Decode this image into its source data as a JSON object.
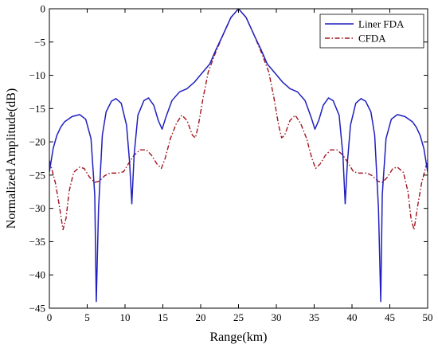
{
  "chart_data": {
    "type": "line",
    "xlabel": "Range(km)",
    "ylabel": "Normalized Amplitude(dB)",
    "xlim": [
      0,
      50
    ],
    "ylim": [
      -45,
      0
    ],
    "xticks": [
      0,
      5,
      10,
      15,
      20,
      25,
      30,
      35,
      40,
      45,
      50
    ],
    "yticks": [
      0,
      -5,
      -10,
      -15,
      -20,
      -25,
      -30,
      -35,
      -40,
      -45
    ],
    "grid": false,
    "legend_position": "top-right",
    "series": [
      {
        "name": "Liner FDA",
        "color": "#1f1fbf",
        "line_style": "solid",
        "points": [
          [
            0,
            -24.5
          ],
          [
            0.5,
            -21
          ],
          [
            1,
            -19
          ],
          [
            1.5,
            -17.8
          ],
          [
            2,
            -17
          ],
          [
            3,
            -16.2
          ],
          [
            4,
            -15.9
          ],
          [
            4.8,
            -16.6
          ],
          [
            5.5,
            -19.5
          ],
          [
            6,
            -28
          ],
          [
            6.2,
            -44
          ],
          [
            6.5,
            -30
          ],
          [
            7,
            -19
          ],
          [
            7.5,
            -15.5
          ],
          [
            8.2,
            -13.9
          ],
          [
            8.8,
            -13.5
          ],
          [
            9.5,
            -14.2
          ],
          [
            10.2,
            -17.5
          ],
          [
            10.6,
            -23
          ],
          [
            10.9,
            -29.3
          ],
          [
            11.2,
            -22
          ],
          [
            11.7,
            -16
          ],
          [
            12.5,
            -13.8
          ],
          [
            13.1,
            -13.4
          ],
          [
            13.8,
            -14.5
          ],
          [
            14.4,
            -16.8
          ],
          [
            14.9,
            -18.1
          ],
          [
            15.4,
            -16.3
          ],
          [
            16.2,
            -13.8
          ],
          [
            17.2,
            -12.5
          ],
          [
            18.2,
            -12
          ],
          [
            19.2,
            -11
          ],
          [
            20.3,
            -9.5
          ],
          [
            21.2,
            -8.3
          ],
          [
            22,
            -6.2
          ],
          [
            23,
            -3.8
          ],
          [
            24,
            -1.3
          ],
          [
            25,
            0
          ],
          [
            26,
            -1.3
          ],
          [
            27,
            -3.8
          ],
          [
            28,
            -6.2
          ],
          [
            28.8,
            -8.3
          ],
          [
            29.7,
            -9.5
          ],
          [
            30.8,
            -11
          ],
          [
            31.8,
            -12
          ],
          [
            32.8,
            -12.5
          ],
          [
            33.8,
            -13.8
          ],
          [
            34.6,
            -16.3
          ],
          [
            35.1,
            -18.1
          ],
          [
            35.6,
            -16.8
          ],
          [
            36.2,
            -14.5
          ],
          [
            36.9,
            -13.4
          ],
          [
            37.5,
            -13.8
          ],
          [
            38.3,
            -16
          ],
          [
            38.8,
            -22
          ],
          [
            39.1,
            -29.3
          ],
          [
            39.4,
            -23
          ],
          [
            39.8,
            -17.5
          ],
          [
            40.5,
            -14.2
          ],
          [
            41.2,
            -13.5
          ],
          [
            41.8,
            -13.9
          ],
          [
            42.5,
            -15.5
          ],
          [
            43,
            -19
          ],
          [
            43.5,
            -30
          ],
          [
            43.8,
            -44
          ],
          [
            44,
            -28
          ],
          [
            44.5,
            -19.5
          ],
          [
            45.2,
            -16.6
          ],
          [
            46,
            -15.9
          ],
          [
            47,
            -16.2
          ],
          [
            48,
            -17
          ],
          [
            48.5,
            -17.8
          ],
          [
            49,
            -19
          ],
          [
            49.5,
            -21
          ],
          [
            50,
            -24.5
          ]
        ]
      },
      {
        "name": "CFDA",
        "color": "#a0141e",
        "line_style": "dash-dot",
        "points": [
          [
            0,
            -22.8
          ],
          [
            0.3,
            -24
          ],
          [
            0.8,
            -26.2
          ],
          [
            1.3,
            -29.5
          ],
          [
            1.8,
            -33.2
          ],
          [
            2.2,
            -31.5
          ],
          [
            2.6,
            -27.5
          ],
          [
            3.2,
            -24.6
          ],
          [
            4,
            -23.8
          ],
          [
            4.6,
            -24
          ],
          [
            5.3,
            -25.3
          ],
          [
            6,
            -26.1
          ],
          [
            6.6,
            -25.9
          ],
          [
            7.3,
            -25.1
          ],
          [
            8,
            -24.7
          ],
          [
            9,
            -24.7
          ],
          [
            9.8,
            -24.5
          ],
          [
            10.5,
            -23.2
          ],
          [
            11.2,
            -22
          ],
          [
            12,
            -21.2
          ],
          [
            12.8,
            -21.2
          ],
          [
            13.5,
            -22
          ],
          [
            14.2,
            -23.3
          ],
          [
            14.8,
            -24
          ],
          [
            15.3,
            -22.5
          ],
          [
            16,
            -19.5
          ],
          [
            16.8,
            -17.2
          ],
          [
            17.5,
            -16
          ],
          [
            18.2,
            -16.8
          ],
          [
            18.9,
            -19
          ],
          [
            19.3,
            -19.4
          ],
          [
            19.7,
            -17.5
          ],
          [
            20.3,
            -13.5
          ],
          [
            21,
            -9.5
          ],
          [
            22,
            -6.5
          ],
          [
            23,
            -3.8
          ],
          [
            24,
            -1.3
          ],
          [
            25,
            0
          ],
          [
            26,
            -1.3
          ],
          [
            27,
            -3.8
          ],
          [
            28,
            -6.5
          ],
          [
            29,
            -9.5
          ],
          [
            29.7,
            -13.5
          ],
          [
            30.3,
            -17.5
          ],
          [
            30.7,
            -19.4
          ],
          [
            31.1,
            -19
          ],
          [
            31.8,
            -16.8
          ],
          [
            32.5,
            -16
          ],
          [
            33.2,
            -17.2
          ],
          [
            34,
            -19.5
          ],
          [
            34.7,
            -22.5
          ],
          [
            35.2,
            -24
          ],
          [
            35.8,
            -23.3
          ],
          [
            36.5,
            -22
          ],
          [
            37.2,
            -21.2
          ],
          [
            38,
            -21.2
          ],
          [
            38.8,
            -22
          ],
          [
            39.5,
            -23.2
          ],
          [
            40.2,
            -24.5
          ],
          [
            41,
            -24.7
          ],
          [
            42,
            -24.7
          ],
          [
            42.7,
            -25.1
          ],
          [
            43.4,
            -25.9
          ],
          [
            44,
            -26.1
          ],
          [
            44.7,
            -25.3
          ],
          [
            45.4,
            -24
          ],
          [
            46,
            -23.8
          ],
          [
            46.8,
            -24.6
          ],
          [
            47.4,
            -27.5
          ],
          [
            47.8,
            -31.5
          ],
          [
            48.2,
            -33.2
          ],
          [
            48.7,
            -29.5
          ],
          [
            49.2,
            -26.2
          ],
          [
            49.7,
            -24
          ],
          [
            50,
            -22.8
          ]
        ]
      }
    ]
  }
}
